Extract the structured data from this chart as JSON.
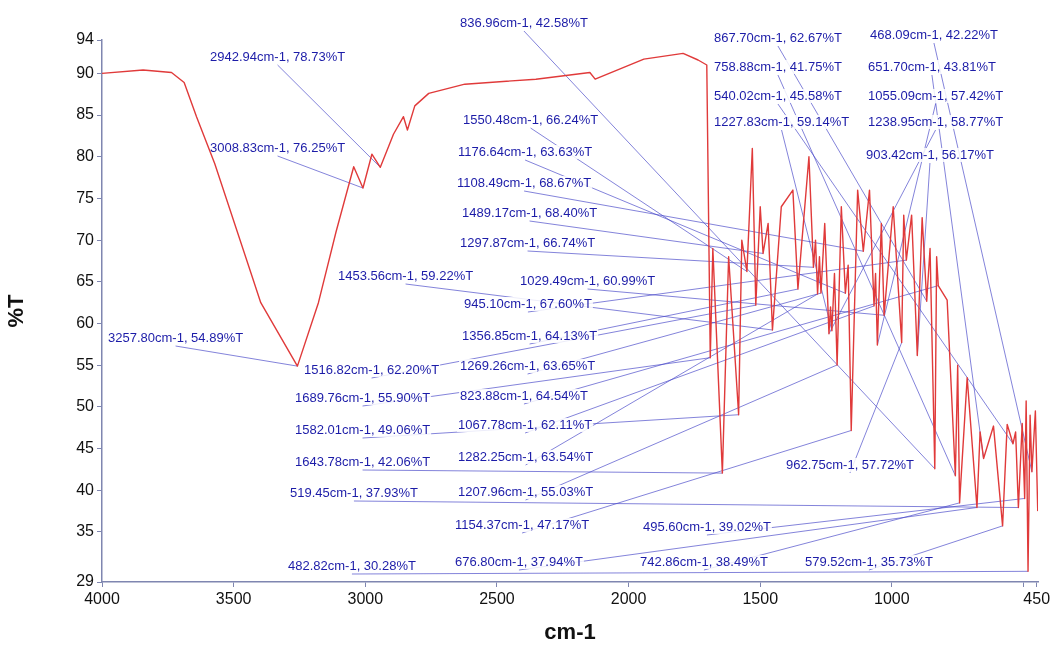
{
  "chart_data": {
    "type": "line",
    "xlabel": "cm-1",
    "ylabel": "%T",
    "xlim": [
      4000,
      445
    ],
    "ylim": [
      29,
      94
    ],
    "xticks": [
      4000,
      3500,
      3000,
      2500,
      2000,
      1500,
      1000,
      {
        "value": 500,
        "label": null
      },
      450
    ],
    "yticks": [
      29,
      35,
      40,
      45,
      50,
      55,
      60,
      65,
      70,
      75,
      80,
      85,
      90,
      94
    ],
    "marker": "none",
    "legend": false,
    "series": [
      {
        "color": "#e03a3a",
        "x": [
          4000,
          3844,
          3736,
          3688,
          3641,
          3572,
          3397,
          3257.8,
          3178,
          3111,
          3044,
          3008.83,
          2975,
          2942.94,
          2893,
          2855,
          2840,
          2812,
          2759,
          2622,
          2352,
          2147,
          2127,
          1942,
          1793,
          1736,
          1703,
          1689.76,
          1680,
          1643.78,
          1620,
          1582.01,
          1570,
          1550.48,
          1530,
          1516.82,
          1500,
          1489.17,
          1470,
          1453.56,
          1420,
          1376,
          1356.85,
          1315,
          1297.87,
          1290,
          1282.25,
          1275,
          1269.26,
          1255,
          1238.95,
          1233,
          1227.83,
          1218,
          1207.96,
          1192,
          1176.64,
          1166,
          1154.37,
          1130,
          1108.49,
          1085,
          1067.78,
          1062,
          1055.09,
          1040,
          1029.49,
          995,
          962.75,
          955,
          945.1,
          925,
          903.42,
          885,
          867.7,
          855,
          836.96,
          830,
          823.88,
          790,
          758.88,
          750,
          742.86,
          714,
          676.8,
          665,
          651.7,
          614,
          579.52,
          562,
          540.02,
          530,
          519.45,
          505,
          495.6,
          490,
          482.82,
          475,
          468.09,
          455,
          446
        ],
        "values": [
          90.0,
          90.4,
          90.1,
          88.9,
          84.8,
          79.2,
          62.5,
          54.89,
          62.5,
          71.0,
          78.8,
          76.25,
          80.3,
          78.73,
          82.7,
          84.8,
          83.2,
          86.1,
          87.6,
          88.7,
          89.3,
          90.1,
          89.3,
          91.7,
          92.4,
          91.6,
          91.0,
          55.9,
          69,
          42.06,
          68,
          49.06,
          70,
          66.24,
          81,
          62.2,
          74,
          68.4,
          72,
          59.22,
          74,
          76,
          64.13,
          80,
          66.74,
          70,
          63.54,
          68,
          63.65,
          72,
          58.77,
          62,
          59.14,
          66,
          55.03,
          74,
          63.63,
          67,
          47.17,
          76,
          68.67,
          76,
          62.11,
          66,
          57.42,
          72,
          60.99,
          74,
          57.72,
          73,
          67.6,
          73,
          56.17,
          72.7,
          62.67,
          69,
          42.58,
          68,
          64.54,
          62.8,
          41.75,
          55,
          38.49,
          53.5,
          37.94,
          47,
          43.81,
          47.7,
          35.73,
          47.9,
          45.58,
          47,
          37.93,
          48,
          39.02,
          50.7,
          30.28,
          49,
          42.22,
          49.5,
          37.5
        ]
      }
    ],
    "annotations": [
      {
        "text": "2942.94cm-1, 78.73%T",
        "x": 2942.94,
        "y": 78.73
      },
      {
        "text": "3008.83cm-1, 76.25%T",
        "x": 3008.83,
        "y": 76.25
      },
      {
        "text": "3257.80cm-1, 54.89%T",
        "x": 3257.8,
        "y": 54.89
      },
      {
        "text": "836.96cm-1, 42.58%T",
        "x": 836.96,
        "y": 42.58
      },
      {
        "text": "1550.48cm-1, 66.24%T",
        "x": 1550.48,
        "y": 66.24
      },
      {
        "text": "1176.64cm-1, 63.63%T",
        "x": 1176.64,
        "y": 63.63
      },
      {
        "text": "1108.49cm-1, 68.67%T",
        "x": 1108.49,
        "y": 68.67
      },
      {
        "text": "1489.17cm-1, 68.40%T",
        "x": 1489.17,
        "y": 68.4
      },
      {
        "text": "1297.87cm-1, 66.74%T",
        "x": 1297.87,
        "y": 66.74
      },
      {
        "text": "1453.56cm-1, 59.22%T",
        "x": 1453.56,
        "y": 59.22
      },
      {
        "text": "1029.49cm-1, 60.99%T",
        "x": 1029.49,
        "y": 60.99
      },
      {
        "text": "945.10cm-1, 67.60%T",
        "x": 945.1,
        "y": 67.6
      },
      {
        "text": "1356.85cm-1, 64.13%T",
        "x": 1356.85,
        "y": 64.13
      },
      {
        "text": "1516.82cm-1, 62.20%T",
        "x": 1516.82,
        "y": 62.2
      },
      {
        "text": "1269.26cm-1, 63.65%T",
        "x": 1269.26,
        "y": 63.65
      },
      {
        "text": "1689.76cm-1, 55.90%T",
        "x": 1689.76,
        "y": 55.9
      },
      {
        "text": "823.88cm-1, 64.54%T",
        "x": 823.88,
        "y": 64.54
      },
      {
        "text": "1582.01cm-1, 49.06%T",
        "x": 1582.01,
        "y": 49.06
      },
      {
        "text": "1067.78cm-1, 62.11%T",
        "x": 1067.78,
        "y": 62.11
      },
      {
        "text": "1643.78cm-1, 42.06%T",
        "x": 1643.78,
        "y": 42.06
      },
      {
        "text": "1282.25cm-1, 63.54%T",
        "x": 1282.25,
        "y": 63.54
      },
      {
        "text": "519.45cm-1, 37.93%T",
        "x": 519.45,
        "y": 37.93
      },
      {
        "text": "1207.96cm-1, 55.03%T",
        "x": 1207.96,
        "y": 55.03
      },
      {
        "text": "1154.37cm-1, 47.17%T",
        "x": 1154.37,
        "y": 47.17
      },
      {
        "text": "495.60cm-1, 39.02%T",
        "x": 495.6,
        "y": 39.02
      },
      {
        "text": "482.82cm-1, 30.28%T",
        "x": 482.82,
        "y": 30.28
      },
      {
        "text": "676.80cm-1, 37.94%T",
        "x": 676.8,
        "y": 37.94
      },
      {
        "text": "742.86cm-1, 38.49%T",
        "x": 742.86,
        "y": 38.49
      },
      {
        "text": "579.52cm-1, 35.73%T",
        "x": 579.52,
        "y": 35.73
      },
      {
        "text": "962.75cm-1, 57.72%T",
        "x": 962.75,
        "y": 57.72
      },
      {
        "text": "758.88cm-1, 41.75%T",
        "x": 758.88,
        "y": 41.75
      },
      {
        "text": "651.70cm-1, 43.81%T",
        "x": 651.7,
        "y": 43.81
      },
      {
        "text": "540.02cm-1, 45.58%T",
        "x": 540.02,
        "y": 45.58
      },
      {
        "text": "1055.09cm-1, 57.42%T",
        "x": 1055.09,
        "y": 57.42
      },
      {
        "text": "1227.83cm-1, 59.14%T",
        "x": 1227.83,
        "y": 59.14
      },
      {
        "text": "1238.95cm-1, 58.77%T",
        "x": 1238.95,
        "y": 58.77
      },
      {
        "text": "867.70cm-1, 62.67%T",
        "x": 867.7,
        "y": 62.67
      },
      {
        "text": "903.42cm-1, 56.17%T",
        "x": 903.42,
        "y": 56.17
      },
      {
        "text": "468.09cm-1, 42.22%T",
        "x": 468.09,
        "y": 42.22
      }
    ]
  }
}
